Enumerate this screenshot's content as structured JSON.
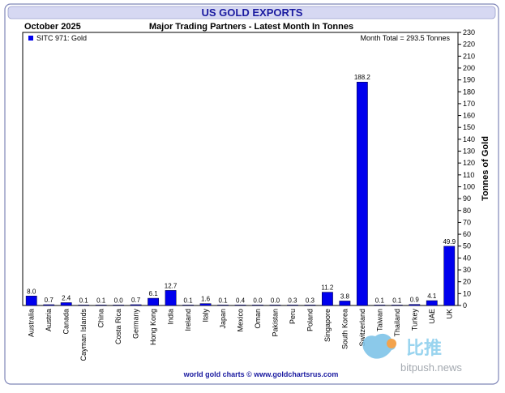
{
  "header": {
    "title": "US GOLD EXPORTS",
    "period": "October 2025",
    "subtitle": "Major Trading Partners - Latest Month In Tonnes"
  },
  "legend": {
    "label": "SITC 971: Gold",
    "total": "Month Total = 293.5 Tonnes"
  },
  "footer": {
    "credit": "world gold charts © www.goldchartsrus.com"
  },
  "watermark": {
    "brand": "比推",
    "url": "bitpush.news"
  },
  "colors": {
    "bar": "#0000ee",
    "header_bg": "#d6d8f2",
    "header_text": "#1a1aa0",
    "border": "#7f86b8"
  },
  "chart_data": {
    "type": "bar",
    "title": "US GOLD EXPORTS",
    "subtitle": "Major Trading Partners - Latest Month In Tonnes",
    "ylabel": "Tonnes of Gold",
    "ylim": [
      0,
      230
    ],
    "ytick_step": 10,
    "grid": false,
    "legend_position": "top-left",
    "categories": [
      "Australia",
      "Austria",
      "Canada",
      "Cayman Islands",
      "China",
      "Costa Rica",
      "Germany",
      "Hong Kong",
      "India",
      "Ireland",
      "Italy",
      "Japan",
      "Mexico",
      "Oman",
      "Pakistan",
      "Peru",
      "Poland",
      "Singapore",
      "South Korea",
      "Switzerland",
      "Taiwan",
      "Thailand",
      "Turkey",
      "UAE",
      "UK"
    ],
    "values": [
      8.0,
      0.7,
      2.4,
      0.1,
      0.1,
      0.0,
      0.7,
      6.1,
      12.7,
      0.1,
      1.6,
      0.1,
      0.4,
      0.0,
      0.0,
      0.3,
      0.3,
      11.2,
      3.8,
      188.2,
      0.1,
      0.1,
      0.9,
      4.1,
      49.9
    ],
    "value_labels": [
      "8.0",
      "0.7",
      "2.4",
      "0.1",
      "0.1",
      "0.0",
      "0.7",
      "6.1",
      "12.7",
      "0.1",
      "1.6",
      "0.1",
      "0.4",
      "0.0",
      "0.0",
      "0.3",
      "0.3",
      "11.2",
      "3.8",
      "188.2",
      "0.1",
      "0.1",
      "0.9",
      "4.1",
      "49.9"
    ],
    "series": [
      {
        "name": "SITC 971: Gold"
      }
    ]
  }
}
